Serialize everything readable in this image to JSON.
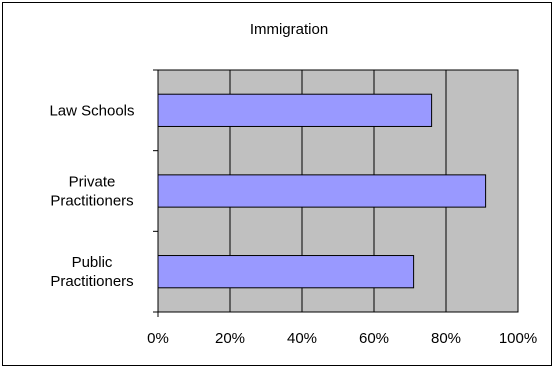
{
  "chart_data": {
    "type": "bar",
    "orientation": "horizontal",
    "title": "Immigration",
    "categories": [
      "Law Schools",
      "Private Practitioners",
      "Public Practitioners"
    ],
    "category_lines": [
      [
        "Law Schools"
      ],
      [
        "Private",
        "Practitioners"
      ],
      [
        "Public",
        "Practitioners"
      ]
    ],
    "values": [
      76,
      91,
      71
    ],
    "xlim": [
      0,
      100
    ],
    "x_ticks": [
      "0%",
      "20%",
      "40%",
      "60%",
      "80%",
      "100%"
    ],
    "xlabel": "",
    "ylabel": "",
    "grid": true,
    "legend": "none",
    "colors": {
      "bar_fill": "#9999ff",
      "bar_stroke": "#000000",
      "plot_background": "#c0c0c0",
      "gridline": "#000000"
    }
  }
}
